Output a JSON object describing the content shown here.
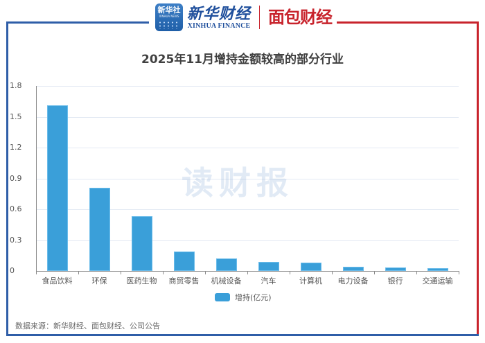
{
  "header": {
    "xinhua_icon_text": "新华社",
    "xinhua_icon_subtext": "XINHUA NEWS",
    "xinhua_finance_cn": "新华财经",
    "xinhua_finance_en": "XINHUA FINANCE",
    "mianbao_logo": "面包财经"
  },
  "frame_colors": {
    "left": "#2f5ea8",
    "right": "#c8232c"
  },
  "watermark": "读财报",
  "chart_data": {
    "type": "bar",
    "title": "2025年11月增持金额较高的部分行业",
    "categories": [
      "食品饮料",
      "环保",
      "医药生物",
      "商贸零售",
      "机械设备",
      "汽车",
      "计算机",
      "电力设备",
      "银行",
      "交通运输"
    ],
    "series": [
      {
        "name": "增持(亿元)",
        "color": "#3a9fd9",
        "values": [
          1.61,
          0.81,
          0.53,
          0.19,
          0.12,
          0.086,
          0.078,
          0.043,
          0.036,
          0.027
        ]
      }
    ],
    "xlabel": "",
    "ylabel": "",
    "ylim": [
      0,
      1.8
    ],
    "yticks": [
      "0",
      "0.3",
      "0.6",
      "0.9",
      "1.2",
      "1.5",
      "1.8"
    ],
    "grid": true,
    "legend_position": "bottom"
  },
  "legend": {
    "label": "增持(亿元)"
  },
  "footer": {
    "source": "数据来源：新华财经、面包财经、公司公告"
  }
}
